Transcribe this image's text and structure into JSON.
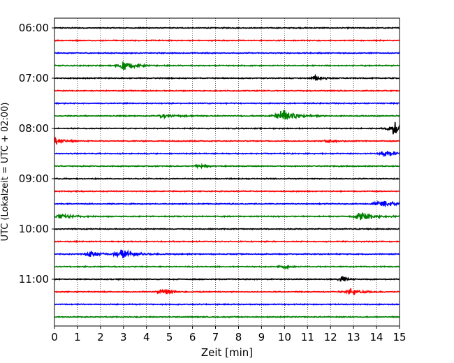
{
  "chart_data": {
    "type": "line",
    "title": "",
    "xlabel": "Zeit  [min]",
    "ylabel": "UTC (Lokalzeit = UTC + 02:00)",
    "xlim": [
      0,
      15
    ],
    "x_ticks": [
      "0",
      "1",
      "2",
      "3",
      "4",
      "5",
      "6",
      "7",
      "8",
      "9",
      "10",
      "11",
      "12",
      "13",
      "14",
      "15"
    ],
    "y_ticks": [
      "06:00",
      "07:00",
      "08:00",
      "09:00",
      "10:00",
      "11:00"
    ],
    "grid": {
      "x": "dotted vertical lines at every minute",
      "y": false
    },
    "trace_minutes": 15,
    "trace_colors": [
      "#000000",
      "#ff0000",
      "#0000ff",
      "#008000"
    ],
    "noise_amplitude": 0.08,
    "series": [
      {
        "start": "06:00",
        "color": "#000000",
        "events": []
      },
      {
        "start": "06:15",
        "color": "#ff0000",
        "events": []
      },
      {
        "start": "06:30",
        "color": "#0000ff",
        "events": []
      },
      {
        "start": "06:45",
        "color": "#008000",
        "events": [
          {
            "t": 3.0,
            "amp": 0.75,
            "width": 0.8
          }
        ]
      },
      {
        "start": "07:00",
        "color": "#000000",
        "events": [
          {
            "t": 11.4,
            "amp": 0.45,
            "width": 0.5
          }
        ]
      },
      {
        "start": "07:15",
        "color": "#ff0000",
        "events": []
      },
      {
        "start": "07:30",
        "color": "#0000ff",
        "events": []
      },
      {
        "start": "07:45",
        "color": "#008000",
        "events": [
          {
            "t": 10.0,
            "amp": 1.1,
            "width": 0.9
          },
          {
            "t": 4.8,
            "amp": 0.25,
            "width": 0.9
          }
        ]
      },
      {
        "start": "08:00",
        "color": "#000000",
        "events": [
          {
            "t": 14.85,
            "amp": 1.05,
            "width": 0.8
          }
        ]
      },
      {
        "start": "08:15",
        "color": "#ff0000",
        "events": [
          {
            "t": 0.1,
            "amp": 0.65,
            "width": 0.5
          },
          {
            "t": 12.0,
            "amp": 0.2,
            "width": 0.8
          }
        ]
      },
      {
        "start": "08:30",
        "color": "#0000ff",
        "events": [
          {
            "t": 14.5,
            "amp": 0.45,
            "width": 0.8
          }
        ]
      },
      {
        "start": "08:45",
        "color": "#008000",
        "events": [
          {
            "t": 6.3,
            "amp": 0.25,
            "width": 0.6
          }
        ]
      },
      {
        "start": "09:00",
        "color": "#000000",
        "events": []
      },
      {
        "start": "09:15",
        "color": "#ff0000",
        "events": []
      },
      {
        "start": "09:30",
        "color": "#0000ff",
        "events": [
          {
            "t": 14.3,
            "amp": 0.55,
            "width": 1.0
          }
        ]
      },
      {
        "start": "09:45",
        "color": "#008000",
        "events": [
          {
            "t": 13.4,
            "amp": 0.7,
            "width": 0.9
          },
          {
            "t": 0.3,
            "amp": 0.3,
            "width": 1.0
          }
        ]
      },
      {
        "start": "10:00",
        "color": "#000000",
        "events": []
      },
      {
        "start": "10:15",
        "color": "#ff0000",
        "events": []
      },
      {
        "start": "10:30",
        "color": "#0000ff",
        "events": [
          {
            "t": 1.6,
            "amp": 0.45,
            "width": 0.8
          },
          {
            "t": 3.0,
            "amp": 0.75,
            "width": 0.9
          }
        ]
      },
      {
        "start": "10:45",
        "color": "#008000",
        "events": [
          {
            "t": 10.0,
            "amp": 0.2,
            "width": 0.6
          }
        ]
      },
      {
        "start": "11:00",
        "color": "#000000",
        "events": [
          {
            "t": 12.5,
            "amp": 0.55,
            "width": 0.4
          }
        ]
      },
      {
        "start": "11:15",
        "color": "#ff0000",
        "events": [
          {
            "t": 4.8,
            "amp": 0.45,
            "width": 0.8
          },
          {
            "t": 12.9,
            "amp": 0.55,
            "width": 0.8
          }
        ]
      },
      {
        "start": "11:30",
        "color": "#0000ff",
        "events": []
      },
      {
        "start": "11:45",
        "color": "#008000",
        "events": []
      }
    ]
  }
}
